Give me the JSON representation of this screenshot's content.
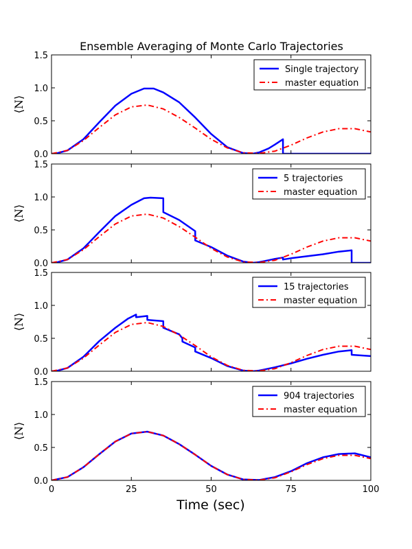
{
  "figure": {
    "title": "Ensemble Averaging of Monte Carlo Trajectories",
    "xlabel": "Time (sec)",
    "ylabel": "⟨N⟩"
  },
  "colors": {
    "trajectory": "#0000ff",
    "master": "#ff0000"
  },
  "chart_data": [
    {
      "type": "line",
      "xlim": [
        0,
        100
      ],
      "ylim": [
        0,
        1.5
      ],
      "xticks": [
        "0",
        "25",
        "50",
        "75",
        "100"
      ],
      "yticks": [
        "0.0",
        "0.5",
        "1.0",
        "1.5"
      ],
      "legend": "top-right",
      "series": [
        {
          "name": "Single trajectory",
          "x": [
            0,
            2,
            5,
            10,
            15,
            20,
            25,
            29,
            32,
            35,
            40,
            45,
            50,
            55,
            60,
            63,
            65,
            68,
            70,
            72.5,
            72.5,
            100
          ],
          "values": [
            0,
            0.01,
            0.05,
            0.22,
            0.48,
            0.73,
            0.91,
            0.99,
            0.99,
            0.93,
            0.78,
            0.55,
            0.3,
            0.1,
            0.01,
            0.0,
            0.02,
            0.08,
            0.14,
            0.22,
            0.0,
            0.0
          ]
        },
        {
          "name": "master equation",
          "x": [
            0,
            5,
            10,
            15,
            20,
            25,
            30,
            35,
            40,
            45,
            50,
            55,
            60,
            65,
            70,
            75,
            80,
            85,
            90,
            95,
            100
          ],
          "values": [
            0,
            0.05,
            0.2,
            0.4,
            0.59,
            0.71,
            0.74,
            0.68,
            0.55,
            0.39,
            0.22,
            0.09,
            0.015,
            0.005,
            0.04,
            0.13,
            0.24,
            0.33,
            0.38,
            0.38,
            0.33
          ]
        }
      ]
    },
    {
      "type": "line",
      "xlim": [
        0,
        100
      ],
      "ylim": [
        0,
        1.5
      ],
      "xticks": [
        "0",
        "25",
        "50",
        "75",
        "100"
      ],
      "yticks": [
        "0.0",
        "0.5",
        "1.0",
        "1.5"
      ],
      "legend": "top-right",
      "series": [
        {
          "name": "5 trajectories",
          "x": [
            0,
            2,
            5,
            10,
            15,
            20,
            25,
            29,
            31,
            35,
            35,
            40,
            45,
            45,
            50,
            55,
            60,
            63,
            65,
            68,
            70,
            72.5,
            72.5,
            75,
            80,
            85,
            90,
            94,
            94,
            100
          ],
          "values": [
            0,
            0.01,
            0.05,
            0.22,
            0.47,
            0.71,
            0.88,
            0.98,
            0.99,
            0.98,
            0.77,
            0.65,
            0.48,
            0.34,
            0.24,
            0.11,
            0.02,
            0.0,
            0.01,
            0.04,
            0.06,
            0.08,
            0.05,
            0.07,
            0.1,
            0.13,
            0.17,
            0.19,
            0.0,
            0.0
          ]
        },
        {
          "name": "master equation",
          "x": [
            0,
            5,
            10,
            15,
            20,
            25,
            30,
            35,
            40,
            45,
            50,
            55,
            60,
            65,
            70,
            75,
            80,
            85,
            90,
            95,
            100
          ],
          "values": [
            0,
            0.05,
            0.2,
            0.4,
            0.59,
            0.71,
            0.74,
            0.68,
            0.55,
            0.39,
            0.22,
            0.09,
            0.015,
            0.005,
            0.04,
            0.13,
            0.24,
            0.33,
            0.38,
            0.38,
            0.33
          ]
        }
      ]
    },
    {
      "type": "line",
      "xlim": [
        0,
        100
      ],
      "ylim": [
        0,
        1.5
      ],
      "xticks": [
        "0",
        "25",
        "50",
        "75",
        "100"
      ],
      "yticks": [
        "0.0",
        "0.5",
        "1.0",
        "1.5"
      ],
      "legend": "top-right",
      "series": [
        {
          "name": "15 trajectories",
          "x": [
            0,
            2,
            5,
            10,
            15,
            20,
            24,
            26.5,
            26.5,
            30,
            30,
            35,
            35,
            40,
            41,
            41,
            45,
            45,
            50,
            55,
            60,
            63,
            65,
            70,
            75,
            80,
            85,
            90,
            94,
            94,
            100
          ],
          "values": [
            0,
            0.01,
            0.05,
            0.22,
            0.46,
            0.66,
            0.8,
            0.86,
            0.82,
            0.84,
            0.78,
            0.76,
            0.66,
            0.56,
            0.5,
            0.45,
            0.36,
            0.3,
            0.2,
            0.08,
            0.01,
            0.0,
            0.01,
            0.06,
            0.12,
            0.19,
            0.25,
            0.3,
            0.32,
            0.25,
            0.23
          ]
        },
        {
          "name": "master equation",
          "x": [
            0,
            5,
            10,
            15,
            20,
            25,
            30,
            35,
            40,
            45,
            50,
            55,
            60,
            65,
            70,
            75,
            80,
            85,
            90,
            95,
            100
          ],
          "values": [
            0,
            0.05,
            0.2,
            0.4,
            0.59,
            0.71,
            0.74,
            0.68,
            0.55,
            0.39,
            0.22,
            0.09,
            0.015,
            0.005,
            0.04,
            0.13,
            0.24,
            0.33,
            0.38,
            0.38,
            0.33
          ]
        }
      ]
    },
    {
      "type": "line",
      "xlim": [
        0,
        100
      ],
      "ylim": [
        0,
        1.5
      ],
      "xticks": [
        "0",
        "25",
        "50",
        "75",
        "100"
      ],
      "yticks": [
        "0.0",
        "0.5",
        "1.0",
        "1.5"
      ],
      "legend": "top-right",
      "series": [
        {
          "name": "904 trajectories",
          "x": [
            0,
            5,
            10,
            15,
            20,
            25,
            30,
            35,
            40,
            45,
            50,
            55,
            60,
            65,
            70,
            75,
            80,
            85,
            90,
            95,
            100
          ],
          "values": [
            0,
            0.05,
            0.2,
            0.4,
            0.59,
            0.71,
            0.74,
            0.68,
            0.55,
            0.39,
            0.22,
            0.09,
            0.015,
            0.005,
            0.05,
            0.14,
            0.26,
            0.35,
            0.4,
            0.41,
            0.35
          ]
        },
        {
          "name": "master equation",
          "x": [
            0,
            5,
            10,
            15,
            20,
            25,
            30,
            35,
            40,
            45,
            50,
            55,
            60,
            65,
            70,
            75,
            80,
            85,
            90,
            95,
            100
          ],
          "values": [
            0,
            0.05,
            0.2,
            0.4,
            0.59,
            0.71,
            0.74,
            0.68,
            0.55,
            0.39,
            0.22,
            0.09,
            0.015,
            0.005,
            0.04,
            0.13,
            0.24,
            0.33,
            0.38,
            0.38,
            0.33
          ]
        }
      ]
    }
  ]
}
